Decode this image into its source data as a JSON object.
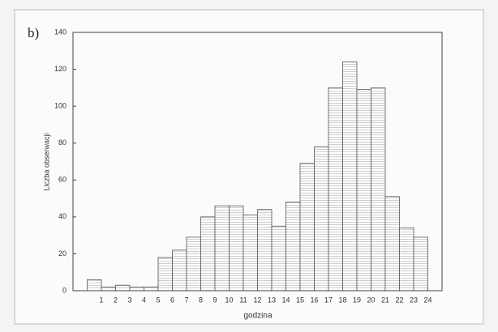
{
  "chart_data": {
    "type": "histogram",
    "title": "b)",
    "ylabel": "Liczba obserwacji",
    "xlabel": "godzina",
    "bins": [
      0,
      1,
      2,
      3,
      4,
      5,
      6,
      7,
      8,
      9,
      10,
      11,
      12,
      13,
      14,
      15,
      16,
      17,
      18,
      19,
      20,
      21,
      22,
      23,
      24
    ],
    "values": [
      6,
      2,
      3,
      2,
      2,
      18,
      22,
      29,
      40,
      46,
      46,
      41,
      44,
      35,
      48,
      69,
      78,
      110,
      124,
      109,
      110,
      51,
      34,
      29
    ],
    "color": "#ffffff",
    "xlim": [
      -1,
      25
    ],
    "xticks": [
      1,
      2,
      3,
      4,
      5,
      6,
      7,
      8,
      9,
      10,
      11,
      12,
      13,
      14,
      15,
      16,
      17,
      18,
      19,
      20,
      21,
      22,
      23,
      24
    ],
    "ylim": [
      0,
      140
    ],
    "yticks": [
      0,
      20,
      40,
      60,
      80,
      100,
      120,
      140
    ],
    "grid": false
  }
}
